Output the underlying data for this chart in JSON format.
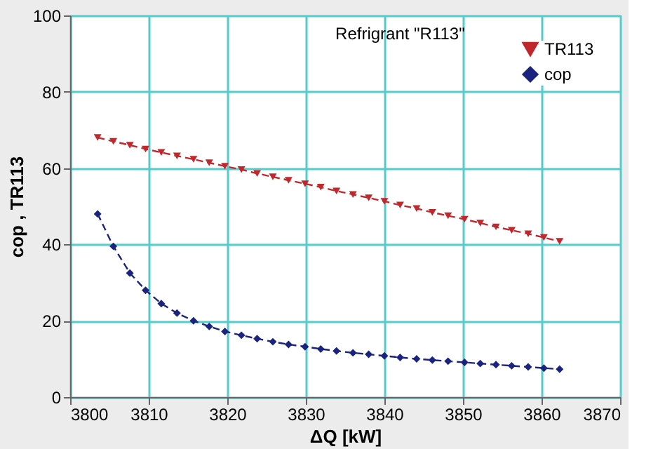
{
  "chart_data": {
    "type": "line",
    "title": "Refrigrant \"R113\"",
    "xlabel": "ΔQ [kW]",
    "ylabel": "cop , TR113",
    "x": [
      3803.5,
      3805.5,
      3807.6,
      3809.6,
      3811.6,
      3813.6,
      3815.7,
      3817.7,
      3819.7,
      3821.8,
      3823.8,
      3825.8,
      3827.8,
      3829.9,
      3831.9,
      3833.9,
      3836.0,
      3838.0,
      3840.0,
      3842.0,
      3844.1,
      3846.1,
      3848.1,
      3850.2,
      3852.2,
      3854.2,
      3856.2,
      3858.3,
      3860.3,
      3862.3
    ],
    "series": [
      {
        "name": "TR113",
        "color": "#c0282d",
        "marker": "triangle",
        "values": [
          68,
          67,
          66,
          65,
          64.1,
          63.2,
          62.3,
          61.4,
          60.5,
          59.6,
          58.6,
          57.7,
          56.8,
          55.9,
          55,
          54,
          53.1,
          52.2,
          51.3,
          50.3,
          49.4,
          48.4,
          47.5,
          46.6,
          45.6,
          44.6,
          43.7,
          42.8,
          41.8,
          40.8
        ]
      },
      {
        "name": "cop",
        "color": "#1a237e",
        "marker": "diamond",
        "values": [
          48,
          39.5,
          32.5,
          28,
          24.5,
          22,
          20,
          18.5,
          17.2,
          16.2,
          15.3,
          14.5,
          13.8,
          13.2,
          12.6,
          12.1,
          11.6,
          11.2,
          10.8,
          10.4,
          10,
          9.7,
          9.4,
          9.1,
          8.8,
          8.5,
          8.2,
          7.9,
          7.6,
          7.3
        ]
      }
    ],
    "xlim": [
      3800,
      3870
    ],
    "xticks": [
      3800,
      3810,
      3820,
      3830,
      3840,
      3850,
      3860,
      3870
    ],
    "ylim": [
      0,
      100
    ],
    "yticks": [
      0,
      20,
      40,
      60,
      80,
      100
    ],
    "grid": true,
    "legend": "top right",
    "line_style": "dashed"
  }
}
